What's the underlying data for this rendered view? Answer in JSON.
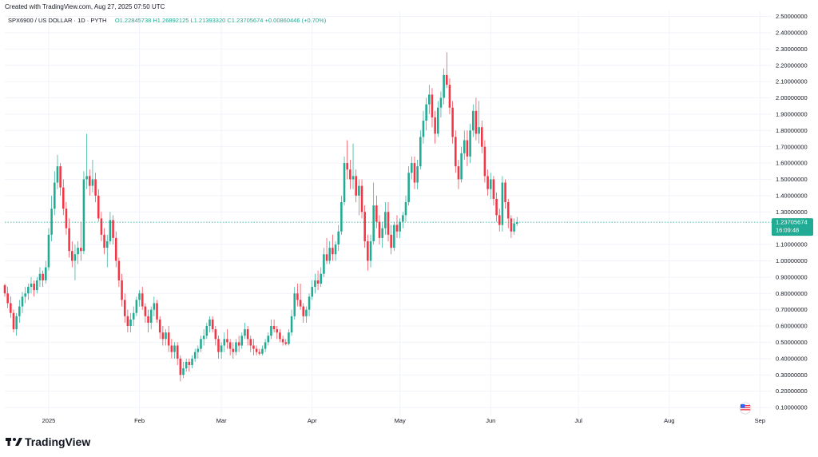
{
  "header": {
    "created": "Created with TradingView.com, Aug 27, 2025 07:50 UTC",
    "symbol": "SPX6900 / US DOLLAR · 1D · PYTH",
    "ohlc": "O1.22845738  H1.26892125  L1.21393320  C1.23705674  +0.00860446 (+0.70%)"
  },
  "price_label": {
    "value": "1.23705674",
    "countdown": "16:09:48"
  },
  "logo": {
    "text": "TradingView",
    "icon": "tradingview-logo-icon"
  },
  "flag_icon": "us-flag-icon",
  "colors": {
    "up": "#22ab94",
    "down": "#f23645",
    "price_line": "#22ab94",
    "grid": "#f0f3fa",
    "text": "#131722"
  },
  "chart_data": {
    "type": "candlestick",
    "title": "SPX6900 / US DOLLAR · 1D · PYTH",
    "ylim": [
      0,
      2.55
    ],
    "yticks": [
      {
        "value": 0.1,
        "label": "0.10000000"
      },
      {
        "value": 0.2,
        "label": "0.20000000"
      },
      {
        "value": 0.3,
        "label": "0.30000000"
      },
      {
        "value": 0.4,
        "label": "0.40000000"
      },
      {
        "value": 0.5,
        "label": "0.50000000"
      },
      {
        "value": 0.6,
        "label": "0.60000000"
      },
      {
        "value": 0.7,
        "label": "0.70000000"
      },
      {
        "value": 0.8,
        "label": "0.80000000"
      },
      {
        "value": 0.9,
        "label": "0.90000000"
      },
      {
        "value": 1.0,
        "label": "1.00000000"
      },
      {
        "value": 1.1,
        "label": "1.10000000"
      },
      {
        "value": 1.3,
        "label": "1.30000000"
      },
      {
        "value": 1.4,
        "label": "1.40000000"
      },
      {
        "value": 1.5,
        "label": "1.50000000"
      },
      {
        "value": 1.6,
        "label": "1.60000000"
      },
      {
        "value": 1.7,
        "label": "1.70000000"
      },
      {
        "value": 1.8,
        "label": "1.80000000"
      },
      {
        "value": 1.9,
        "label": "1.90000000"
      },
      {
        "value": 2.0,
        "label": "2.00000000"
      },
      {
        "value": 2.1,
        "label": "2.10000000"
      },
      {
        "value": 2.2,
        "label": "2.20000000"
      },
      {
        "value": 2.3,
        "label": "2.30000000"
      },
      {
        "value": 2.4,
        "label": "2.40000000"
      },
      {
        "value": 2.5,
        "label": "2.50000000"
      }
    ],
    "xticks": [
      {
        "date": "2025-01-01",
        "label": "2025"
      },
      {
        "date": "2025-02-01",
        "label": "Feb"
      },
      {
        "date": "2025-03-01",
        "label": "Mar"
      },
      {
        "date": "2025-04-01",
        "label": "Apr"
      },
      {
        "date": "2025-05-01",
        "label": "May"
      },
      {
        "date": "2025-06-01",
        "label": "Jun"
      },
      {
        "date": "2025-07-01",
        "label": "Jul"
      },
      {
        "date": "2025-08-01",
        "label": "Aug"
      },
      {
        "date": "2025-09-01",
        "label": "Sep"
      }
    ],
    "x_range": [
      "2024-12-17",
      "2025-09-05"
    ],
    "start_date": "2024-12-17",
    "last_close": 1.23705674,
    "grid": true,
    "ohlc": [
      [
        0.85,
        0.86,
        0.78,
        0.8
      ],
      [
        0.8,
        0.84,
        0.71,
        0.74
      ],
      [
        0.74,
        0.78,
        0.65,
        0.68
      ],
      [
        0.68,
        0.7,
        0.56,
        0.58
      ],
      [
        0.58,
        0.68,
        0.54,
        0.66
      ],
      [
        0.66,
        0.76,
        0.62,
        0.72
      ],
      [
        0.72,
        0.81,
        0.68,
        0.78
      ],
      [
        0.78,
        0.84,
        0.74,
        0.8
      ],
      [
        0.8,
        0.86,
        0.76,
        0.84
      ],
      [
        0.84,
        0.9,
        0.8,
        0.86
      ],
      [
        0.86,
        0.88,
        0.78,
        0.82
      ],
      [
        0.82,
        0.9,
        0.8,
        0.88
      ],
      [
        0.88,
        0.96,
        0.84,
        0.92
      ],
      [
        0.92,
        0.94,
        0.84,
        0.88
      ],
      [
        0.88,
        1.0,
        0.86,
        0.96
      ],
      [
        0.96,
        1.2,
        0.94,
        1.16
      ],
      [
        1.16,
        1.4,
        1.12,
        1.32
      ],
      [
        1.32,
        1.55,
        1.28,
        1.48
      ],
      [
        1.48,
        1.65,
        1.44,
        1.58
      ],
      [
        1.58,
        1.6,
        1.4,
        1.45
      ],
      [
        1.45,
        1.5,
        1.28,
        1.32
      ],
      [
        1.32,
        1.36,
        1.16,
        1.2
      ],
      [
        1.2,
        1.26,
        1.02,
        1.06
      ],
      [
        1.06,
        1.12,
        0.96,
        1.0
      ],
      [
        1.0,
        1.1,
        0.88,
        1.04
      ],
      [
        1.04,
        1.12,
        0.98,
        1.08
      ],
      [
        1.08,
        1.24,
        1.0,
        1.06
      ],
      [
        1.06,
        1.55,
        1.04,
        1.5
      ],
      [
        1.5,
        1.78,
        1.44,
        1.52
      ],
      [
        1.52,
        1.56,
        1.4,
        1.46
      ],
      [
        1.46,
        1.62,
        1.42,
        1.5
      ],
      [
        1.5,
        1.54,
        1.36,
        1.4
      ],
      [
        1.4,
        1.44,
        1.24,
        1.26
      ],
      [
        1.26,
        1.3,
        1.12,
        1.16
      ],
      [
        1.16,
        1.2,
        1.04,
        1.08
      ],
      [
        1.08,
        1.16,
        0.96,
        1.12
      ],
      [
        1.12,
        1.3,
        1.1,
        1.25
      ],
      [
        1.25,
        1.28,
        1.1,
        1.14
      ],
      [
        1.14,
        1.18,
        0.96,
        1.0
      ],
      [
        1.0,
        1.02,
        0.84,
        0.88
      ],
      [
        0.88,
        0.92,
        0.72,
        0.76
      ],
      [
        0.76,
        0.8,
        0.62,
        0.66
      ],
      [
        0.66,
        0.7,
        0.56,
        0.6
      ],
      [
        0.6,
        0.68,
        0.56,
        0.64
      ],
      [
        0.64,
        0.72,
        0.6,
        0.68
      ],
      [
        0.68,
        0.78,
        0.66,
        0.76
      ],
      [
        0.76,
        0.82,
        0.72,
        0.8
      ],
      [
        0.8,
        0.84,
        0.7,
        0.72
      ],
      [
        0.72,
        0.74,
        0.62,
        0.66
      ],
      [
        0.66,
        0.7,
        0.56,
        0.62
      ],
      [
        0.62,
        0.72,
        0.58,
        0.7
      ],
      [
        0.7,
        0.78,
        0.66,
        0.74
      ],
      [
        0.74,
        0.76,
        0.62,
        0.64
      ],
      [
        0.64,
        0.66,
        0.52,
        0.56
      ],
      [
        0.56,
        0.6,
        0.48,
        0.52
      ],
      [
        0.52,
        0.58,
        0.48,
        0.56
      ],
      [
        0.56,
        0.6,
        0.44,
        0.48
      ],
      [
        0.48,
        0.52,
        0.4,
        0.44
      ],
      [
        0.44,
        0.5,
        0.4,
        0.48
      ],
      [
        0.48,
        0.5,
        0.36,
        0.4
      ],
      [
        0.4,
        0.42,
        0.26,
        0.3
      ],
      [
        0.3,
        0.38,
        0.28,
        0.34
      ],
      [
        0.34,
        0.4,
        0.32,
        0.38
      ],
      [
        0.38,
        0.4,
        0.32,
        0.36
      ],
      [
        0.36,
        0.42,
        0.34,
        0.4
      ],
      [
        0.4,
        0.46,
        0.38,
        0.44
      ],
      [
        0.44,
        0.48,
        0.4,
        0.46
      ],
      [
        0.46,
        0.54,
        0.44,
        0.52
      ],
      [
        0.52,
        0.58,
        0.48,
        0.54
      ],
      [
        0.54,
        0.62,
        0.52,
        0.6
      ],
      [
        0.6,
        0.66,
        0.56,
        0.64
      ],
      [
        0.64,
        0.66,
        0.56,
        0.58
      ],
      [
        0.58,
        0.6,
        0.48,
        0.52
      ],
      [
        0.52,
        0.54,
        0.4,
        0.44
      ],
      [
        0.44,
        0.5,
        0.4,
        0.48
      ],
      [
        0.48,
        0.56,
        0.44,
        0.52
      ],
      [
        0.52,
        0.58,
        0.46,
        0.5
      ],
      [
        0.5,
        0.52,
        0.42,
        0.46
      ],
      [
        0.46,
        0.5,
        0.4,
        0.44
      ],
      [
        0.44,
        0.52,
        0.42,
        0.5
      ],
      [
        0.5,
        0.54,
        0.44,
        0.48
      ],
      [
        0.48,
        0.56,
        0.46,
        0.54
      ],
      [
        0.54,
        0.62,
        0.52,
        0.58
      ],
      [
        0.58,
        0.6,
        0.48,
        0.52
      ],
      [
        0.52,
        0.54,
        0.44,
        0.48
      ],
      [
        0.48,
        0.52,
        0.42,
        0.46
      ],
      [
        0.46,
        0.48,
        0.42,
        0.44
      ],
      [
        0.44,
        0.46,
        0.42,
        0.43
      ],
      [
        0.43,
        0.48,
        0.42,
        0.46
      ],
      [
        0.46,
        0.52,
        0.44,
        0.5
      ],
      [
        0.5,
        0.56,
        0.48,
        0.54
      ],
      [
        0.54,
        0.64,
        0.52,
        0.6
      ],
      [
        0.6,
        0.64,
        0.56,
        0.58
      ],
      [
        0.58,
        0.6,
        0.52,
        0.56
      ],
      [
        0.56,
        0.58,
        0.5,
        0.52
      ],
      [
        0.52,
        0.54,
        0.48,
        0.5
      ],
      [
        0.5,
        0.52,
        0.48,
        0.49
      ],
      [
        0.49,
        0.58,
        0.48,
        0.56
      ],
      [
        0.56,
        0.7,
        0.54,
        0.66
      ],
      [
        0.66,
        0.84,
        0.64,
        0.8
      ],
      [
        0.8,
        0.86,
        0.72,
        0.76
      ],
      [
        0.76,
        0.86,
        0.7,
        0.72
      ],
      [
        0.72,
        0.74,
        0.62,
        0.66
      ],
      [
        0.66,
        0.72,
        0.62,
        0.7
      ],
      [
        0.7,
        0.8,
        0.66,
        0.78
      ],
      [
        0.78,
        0.88,
        0.76,
        0.84
      ],
      [
        0.84,
        0.92,
        0.8,
        0.88
      ],
      [
        0.88,
        0.94,
        0.82,
        0.86
      ],
      [
        0.86,
        0.96,
        0.84,
        0.92
      ],
      [
        0.92,
        1.08,
        0.9,
        1.04
      ],
      [
        1.04,
        1.14,
        0.98,
        1.0
      ],
      [
        1.0,
        1.12,
        0.98,
        1.08
      ],
      [
        1.08,
        1.16,
        1.0,
        1.04
      ],
      [
        1.04,
        1.12,
        1.0,
        1.1
      ],
      [
        1.1,
        1.22,
        1.06,
        1.18
      ],
      [
        1.18,
        1.4,
        1.16,
        1.36
      ],
      [
        1.36,
        1.64,
        1.34,
        1.6
      ],
      [
        1.6,
        1.74,
        1.5,
        1.56
      ],
      [
        1.56,
        1.62,
        1.44,
        1.5
      ],
      [
        1.5,
        1.72,
        1.44,
        1.52
      ],
      [
        1.52,
        1.56,
        1.36,
        1.4
      ],
      [
        1.4,
        1.5,
        1.28,
        1.46
      ],
      [
        1.46,
        1.5,
        1.26,
        1.3
      ],
      [
        1.3,
        1.34,
        1.08,
        1.12
      ],
      [
        1.12,
        1.16,
        0.94,
        1.0
      ],
      [
        1.0,
        1.16,
        0.96,
        1.12
      ],
      [
        1.12,
        1.48,
        1.1,
        1.34
      ],
      [
        1.34,
        1.4,
        1.2,
        1.24
      ],
      [
        1.24,
        1.28,
        1.1,
        1.14
      ],
      [
        1.14,
        1.24,
        1.08,
        1.2
      ],
      [
        1.2,
        1.36,
        1.16,
        1.3
      ],
      [
        1.3,
        1.36,
        1.12,
        1.16
      ],
      [
        1.16,
        1.22,
        1.04,
        1.08
      ],
      [
        1.08,
        1.24,
        1.06,
        1.22
      ],
      [
        1.22,
        1.28,
        1.14,
        1.18
      ],
      [
        1.18,
        1.26,
        1.14,
        1.24
      ],
      [
        1.24,
        1.3,
        1.2,
        1.28
      ],
      [
        1.28,
        1.4,
        1.24,
        1.36
      ],
      [
        1.36,
        1.58,
        1.34,
        1.54
      ],
      [
        1.54,
        1.64,
        1.5,
        1.6
      ],
      [
        1.6,
        1.64,
        1.44,
        1.48
      ],
      [
        1.48,
        1.62,
        1.44,
        1.58
      ],
      [
        1.58,
        1.8,
        1.56,
        1.76
      ],
      [
        1.76,
        1.92,
        1.72,
        1.86
      ],
      [
        1.86,
        2.0,
        1.8,
        1.96
      ],
      [
        1.96,
        2.08,
        1.9,
        2.02
      ],
      [
        2.02,
        2.06,
        1.82,
        1.88
      ],
      [
        1.88,
        1.92,
        1.72,
        1.78
      ],
      [
        1.78,
        1.98,
        1.76,
        1.94
      ],
      [
        1.94,
        2.04,
        1.88,
        2.0
      ],
      [
        2.0,
        2.18,
        1.96,
        2.14
      ],
      [
        2.14,
        2.28,
        2.06,
        2.08
      ],
      [
        2.08,
        2.12,
        1.9,
        1.94
      ],
      [
        1.94,
        1.98,
        1.72,
        1.76
      ],
      [
        1.76,
        1.8,
        1.54,
        1.58
      ],
      [
        1.58,
        1.62,
        1.44,
        1.5
      ],
      [
        1.5,
        1.7,
        1.48,
        1.66
      ],
      [
        1.66,
        1.8,
        1.62,
        1.74
      ],
      [
        1.74,
        1.8,
        1.58,
        1.64
      ],
      [
        1.64,
        1.84,
        1.6,
        1.8
      ],
      [
        1.8,
        1.96,
        1.76,
        1.92
      ],
      [
        1.92,
        2.0,
        1.74,
        1.78
      ],
      [
        1.78,
        1.98,
        1.72,
        1.82
      ],
      [
        1.82,
        1.86,
        1.66,
        1.7
      ],
      [
        1.7,
        1.74,
        1.48,
        1.52
      ],
      [
        1.52,
        1.56,
        1.4,
        1.44
      ],
      [
        1.44,
        1.54,
        1.38,
        1.5
      ],
      [
        1.5,
        1.52,
        1.34,
        1.38
      ],
      [
        1.38,
        1.42,
        1.24,
        1.28
      ],
      [
        1.28,
        1.32,
        1.18,
        1.22
      ],
      [
        1.22,
        1.52,
        1.18,
        1.48
      ],
      [
        1.48,
        1.5,
        1.32,
        1.36
      ],
      [
        1.36,
        1.38,
        1.2,
        1.26
      ],
      [
        1.26,
        1.28,
        1.14,
        1.18
      ],
      [
        1.18,
        1.26,
        1.16,
        1.23
      ],
      [
        1.228,
        1.269,
        1.214,
        1.237
      ]
    ]
  }
}
